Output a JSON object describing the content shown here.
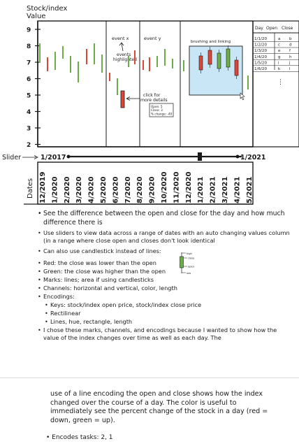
{
  "y_axis_title": [
    "Stock/index",
    "Value"
  ],
  "y_ticks": [
    "9",
    "8",
    "7",
    "6",
    "5",
    "4",
    "3",
    "2"
  ],
  "annotations": {
    "event_x": "event x",
    "event_y": "event y",
    "events_highlighted": [
      "events",
      "highlighted"
    ],
    "brushing_linking": "brushing and linking",
    "click_details": [
      "click for",
      "more details"
    ],
    "details_box": [
      "Open: 5",
      "Close: 3",
      "% change: -40"
    ]
  },
  "table": {
    "headers": [
      "Day",
      "Open",
      "Close"
    ],
    "rows": [
      [
        "1/1/20",
        "a",
        "b"
      ],
      [
        "1/2/20",
        "c",
        "d"
      ],
      [
        "1/3/20",
        "e",
        "f"
      ],
      [
        "1/4/20",
        "g",
        "h"
      ],
      [
        "1/5/20",
        "i",
        "j"
      ],
      [
        "1/6/20",
        "k",
        "l"
      ]
    ],
    "more": "⋮"
  },
  "slider": {
    "label": "Slider",
    "start": "1/2017",
    "end": "1/2021"
  },
  "dates_axis": {
    "title": "Dates",
    "labels": [
      "12/2019",
      "1/2020",
      "2/2020",
      "3/2020",
      "4/2020",
      "5/2020",
      "6/2020",
      "7/2020",
      "8/2020",
      "9/2020",
      "10/2020",
      "11/2020",
      "12/2020",
      "1/2021",
      "2/2021",
      "3/2021",
      "4/2021",
      "5/2021"
    ]
  },
  "legend_candle": {
    "high": "high",
    "open": "open",
    "close": "close",
    "low": "low"
  },
  "notes": [
    "See the difference between the open and close for the day and how much difference there is",
    "Use sliders to view data across a range of dates with an auto changing values column (in a range where close open and closes don't look identical",
    "Can also use candlestick instead of lines:",
    "Red: the close was lower than the open",
    "Green: the close was higher than the open",
    "Marks: lines; area if using candlesticks",
    "Channels: horizontal and vertical, color, length",
    "Encodings:",
    "Keys: stock/index open price, stock/index close price",
    "Rectilinear",
    "Lines, hue, rectangle, length",
    "I chose these marks, channels, and encodings because I wanted to show how the value of the index changes over time as well as each day. The"
  ],
  "page2": {
    "paragraph": "use of a line encoding the open and close shows how the index changed over the course of a day. The color is useful to immediately see the percent change of the stock in a day (red = down, green = up).",
    "tasks": "Encodes tasks: 2, 1"
  },
  "colors": {
    "up": "#6cae45",
    "down": "#d9473b",
    "brush": "#c9e6f7",
    "ink": "#1a1a1a"
  }
}
